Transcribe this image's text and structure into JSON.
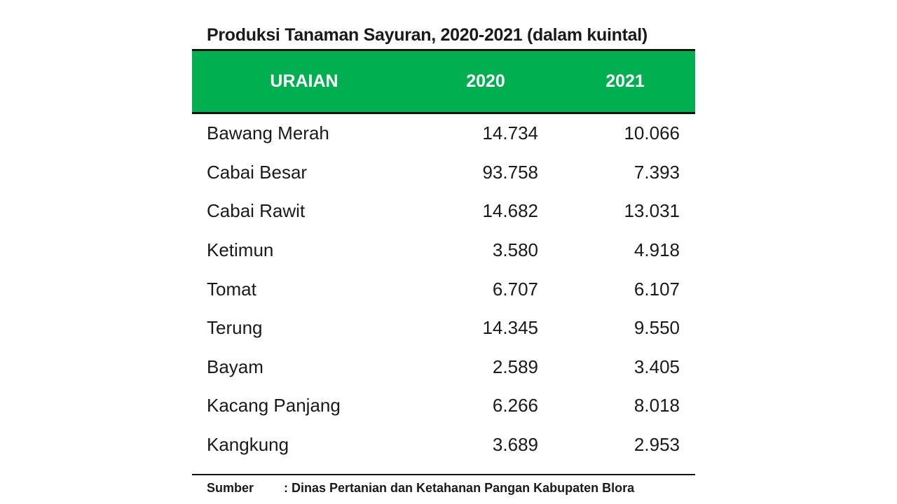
{
  "title": "Produksi Tanaman Sayuran, 2020-2021 (dalam kuintal)",
  "header": {
    "col_name": "URAIAN",
    "col_2020": "2020",
    "col_2021": "2021",
    "bg_color": "#00b050"
  },
  "rows": [
    {
      "name": "Bawang Merah",
      "v2020": "14.734",
      "v2021": "10.066"
    },
    {
      "name": "Cabai Besar",
      "v2020": "93.758",
      "v2021": "7.393"
    },
    {
      "name": "Cabai Rawit",
      "v2020": "14.682",
      "v2021": "13.031"
    },
    {
      "name": "Ketimun",
      "v2020": "3.580",
      "v2021": "4.918"
    },
    {
      "name": "Tomat",
      "v2020": "6.707",
      "v2021": "6.107"
    },
    {
      "name": "Terung",
      "v2020": "14.345",
      "v2021": "9.550"
    },
    {
      "name": "Bayam",
      "v2020": "2.589",
      "v2021": "3.405"
    },
    {
      "name": "Kacang Panjang",
      "v2020": "6.266",
      "v2021": "8.018"
    },
    {
      "name": "Kangkung",
      "v2020": "3.689",
      "v2021": "2.953"
    }
  ],
  "source": {
    "label": "Sumber",
    "text": ": Dinas Pertanian dan Ketahanan Pangan Kabupaten Blora"
  }
}
